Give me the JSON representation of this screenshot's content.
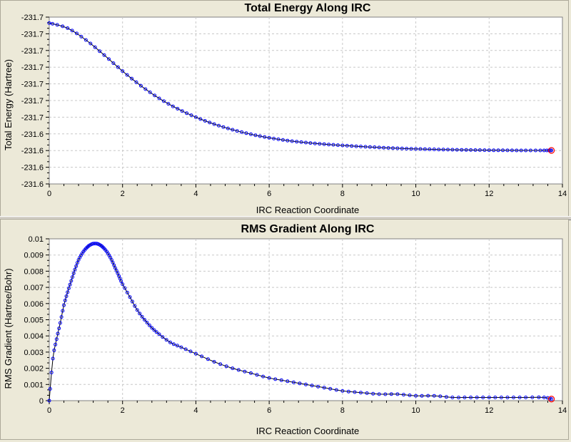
{
  "chart_data": [
    {
      "type": "line",
      "title": "Total Energy Along IRC",
      "xlabel": "IRC Reaction Coordinate",
      "ylabel": "Total Energy (Hartree)",
      "xlim": [
        0,
        14
      ],
      "ylim": [
        -231.735,
        -231.595
      ],
      "xticks": [
        "0",
        "2",
        "4",
        "6",
        "8",
        "10",
        "12",
        "14"
      ],
      "yticks": [
        "-231.6",
        "-231.6",
        "-231.6",
        "-231.6",
        "-231.7",
        "-231.7",
        "-231.7",
        "-231.7",
        "-231.7",
        "-231.7",
        "-231.7"
      ],
      "grid": true,
      "line_color": "#000000",
      "marker_color": "#0000ff",
      "highlight_color": "#ff0000",
      "highlight_x": 13.7,
      "series": [
        {
          "x": [
            0,
            0.5,
            1,
            1.5,
            2,
            2.5,
            3,
            3.5,
            4,
            4.5,
            5,
            5.5,
            6,
            6.5,
            7,
            7.5,
            8,
            8.5,
            9,
            9.5,
            10,
            10.5,
            11,
            11.5,
            12,
            12.5,
            13,
            13.5,
            13.7
          ],
          "y": [
            -231.6,
            -231.6043,
            -231.6142,
            -231.6269,
            -231.6403,
            -231.6526,
            -231.6632,
            -231.6719,
            -231.679,
            -231.6848,
            -231.6895,
            -231.6933,
            -231.6963,
            -231.6986,
            -231.7003,
            -231.7016,
            -231.7027,
            -231.7036,
            -231.7044,
            -231.7051,
            -231.7056,
            -231.706,
            -231.7063,
            -231.7065,
            -231.7067,
            -231.7068,
            -231.7069,
            -231.7069,
            -231.7069
          ]
        }
      ]
    },
    {
      "type": "line",
      "title": "RMS Gradient Along IRC",
      "xlabel": "IRC Reaction Coordinate",
      "ylabel": "RMS Gradient (Hartree/Bohr)",
      "xlim": [
        0,
        14
      ],
      "ylim": [
        0,
        0.01
      ],
      "xticks": [
        "0",
        "2",
        "4",
        "6",
        "8",
        "10",
        "12",
        "14"
      ],
      "yticks": [
        "0",
        "0.001",
        "0.002",
        "0.003",
        "0.004",
        "0.005",
        "0.006",
        "0.007",
        "0.008",
        "0.009",
        "0.01"
      ],
      "grid": true,
      "line_color": "#000000",
      "marker_color": "#0000ff",
      "highlight_color": "#ff0000",
      "highlight_x": 13.7,
      "series": [
        {
          "x": [
            0,
            0.1,
            0.2,
            0.3,
            0.4,
            0.5,
            0.6,
            0.7,
            0.8,
            0.9,
            1,
            1.1,
            1.2,
            1.3,
            1.4,
            1.5,
            1.6,
            1.7,
            1.8,
            1.9,
            2,
            2.2,
            2.4,
            2.6,
            2.8,
            3,
            3.3,
            3.6,
            4,
            4.5,
            5,
            5.5,
            6,
            6.5,
            7,
            7.5,
            8,
            8.5,
            9,
            9.5,
            10,
            10.5,
            11,
            11.5,
            12,
            12.5,
            13,
            13.5,
            13.7
          ],
          "y": [
            0,
            0.0026,
            0.0038,
            0.0048,
            0.0059,
            0.0067,
            0.0074,
            0.0081,
            0.0087,
            0.0091,
            0.0094,
            0.0096,
            0.0097,
            0.0097,
            0.0096,
            0.0094,
            0.0091,
            0.0087,
            0.0082,
            0.0077,
            0.0072,
            0.0064,
            0.0056,
            0.005,
            0.0045,
            0.0041,
            0.0036,
            0.0033,
            0.0029,
            0.0024,
            0.002,
            0.0017,
            0.0014,
            0.0012,
            0.001,
            0.0008,
            0.0006,
            0.0005,
            0.0004,
            0.0004,
            0.0003,
            0.0003,
            0.0002,
            0.0002,
            0.0002,
            0.0002,
            0.0002,
            0.0002,
            0.0001
          ]
        }
      ]
    }
  ]
}
